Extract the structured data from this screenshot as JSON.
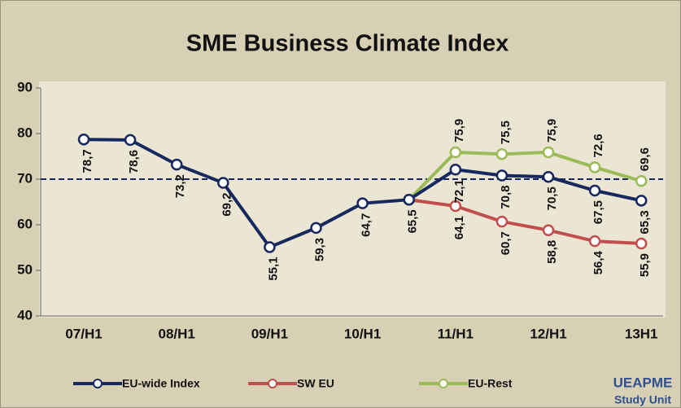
{
  "chart_data": {
    "type": "line",
    "title": "SME Business Climate Index",
    "categories": [
      "07/H1",
      null,
      "08/H1",
      null,
      "09/H1",
      null,
      "10/H1",
      null,
      "11/H1",
      null,
      "12/H1",
      null,
      "13H1"
    ],
    "ylim": [
      40,
      90
    ],
    "yticks": [
      40,
      50,
      60,
      70,
      80,
      90
    ],
    "reference_line": 70,
    "series": [
      {
        "name": "EU-wide Index",
        "color": "#17285e",
        "values": [
          78.7,
          78.6,
          73.2,
          69.2,
          55.1,
          59.3,
          64.7,
          65.5,
          72.1,
          70.8,
          70.5,
          67.5,
          65.3
        ],
        "value_labels": [
          "78,7",
          "78,6",
          "73,2",
          "69,2",
          "55,1",
          "59,3",
          "64,7",
          "65,5",
          "72,1",
          "70,8",
          "70,5",
          "67,5",
          "65,3"
        ]
      },
      {
        "name": "SW EU",
        "color": "#c0504d",
        "values": [
          null,
          null,
          null,
          null,
          null,
          null,
          null,
          65.5,
          64.1,
          60.7,
          58.8,
          56.4,
          55.9
        ],
        "value_labels": [
          null,
          null,
          null,
          null,
          null,
          null,
          null,
          null,
          "64,1",
          "60,7",
          "58,8",
          "56,4",
          "55,9"
        ]
      },
      {
        "name": "EU-Rest",
        "color": "#9bbb59",
        "values": [
          null,
          null,
          null,
          null,
          null,
          null,
          null,
          65.5,
          75.9,
          75.5,
          75.9,
          72.6,
          69.6
        ],
        "value_labels": [
          null,
          null,
          null,
          null,
          null,
          null,
          null,
          null,
          "75,9",
          "75,5",
          "75,9",
          "72,6",
          "69,6"
        ]
      }
    ],
    "logo": [
      "UEAPME",
      "Study Unit"
    ]
  }
}
